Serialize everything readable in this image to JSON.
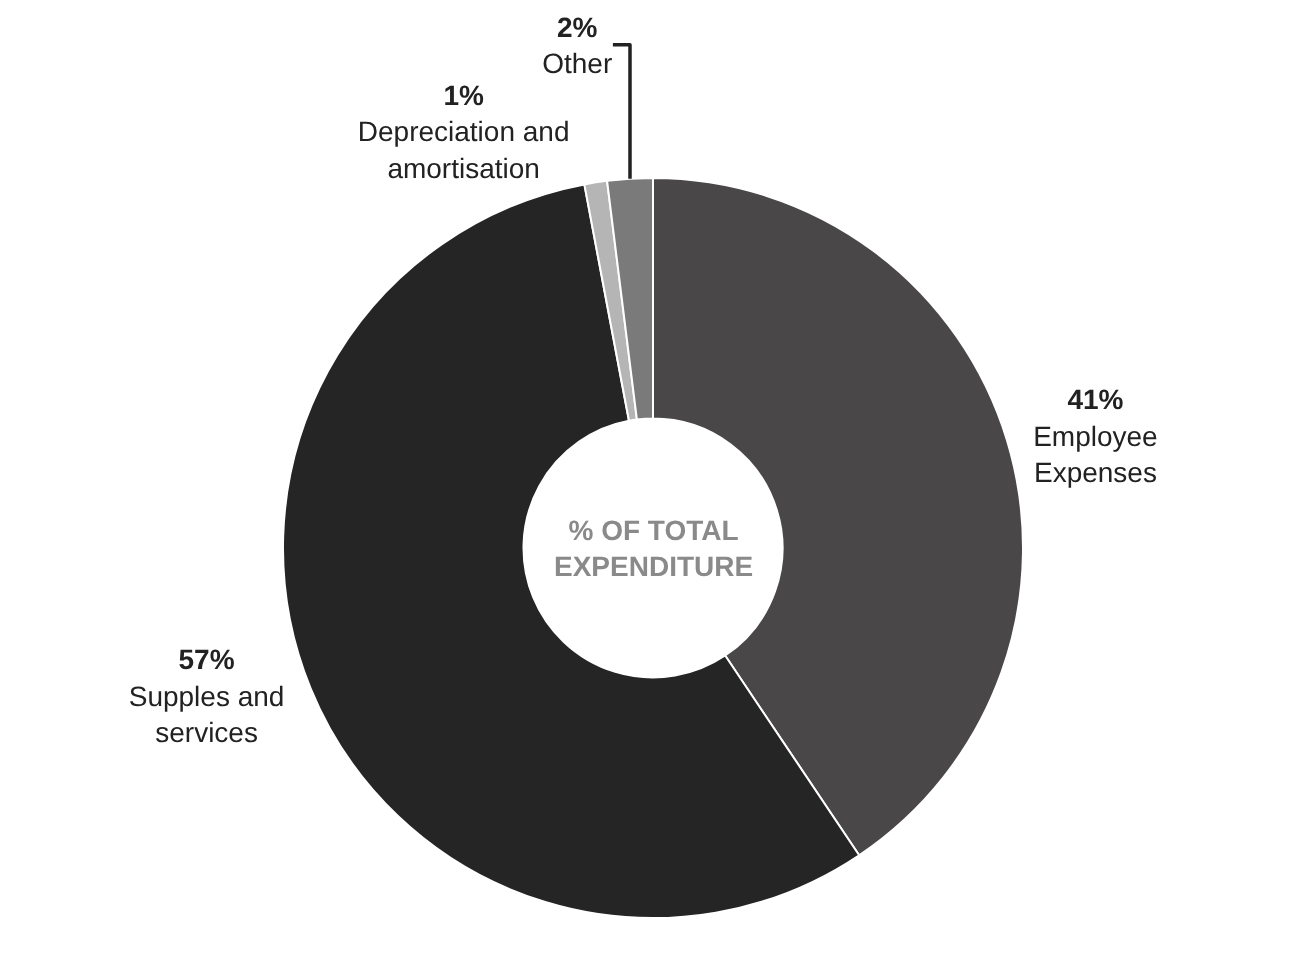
{
  "chart_data": {
    "type": "donut",
    "categories": [
      "Employee Expenses",
      "Supples and services",
      "Depreciation and amortisation",
      "Other"
    ],
    "values": [
      41,
      57,
      1,
      2
    ],
    "value_labels": [
      "41%",
      "57%",
      "1%",
      "2%"
    ],
    "colors": [
      "#4a4748",
      "#252526",
      "#b5b5b5",
      "#7a7a7a"
    ],
    "annotations": [
      "% OF TOTAL EXPENDITURE"
    ],
    "legend": false
  }
}
